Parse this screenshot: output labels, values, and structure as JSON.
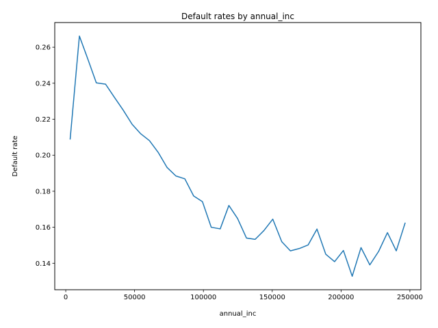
{
  "chart_data": {
    "type": "line",
    "title": "Default rates by annual_inc",
    "xlabel": "annual_inc",
    "ylabel": "Default rate",
    "xlim": [
      -8000,
      258000
    ],
    "ylim": [
      0.1253,
      0.2737
    ],
    "grid": false,
    "xticks": [
      0,
      50000,
      100000,
      150000,
      200000,
      250000
    ],
    "xtick_labels": [
      "0",
      "50000",
      "100000",
      "150000",
      "200000",
      "250000"
    ],
    "yticks": [
      0.14,
      0.16,
      0.18,
      0.2,
      0.22,
      0.24,
      0.26
    ],
    "ytick_labels": [
      "0.14",
      "0.16",
      "0.18",
      "0.20",
      "0.22",
      "0.24",
      "0.26"
    ],
    "series": [
      {
        "color": "#1f77b4",
        "x": [
          3200,
          9900,
          16000,
          22200,
          28900,
          35300,
          41700,
          48200,
          54500,
          60800,
          67300,
          73600,
          80000,
          86500,
          92900,
          99300,
          105700,
          112200,
          118500,
          124800,
          131300,
          137600,
          144000,
          150400,
          156900,
          163200,
          169700,
          176100,
          182500,
          188900,
          195300,
          201700,
          208100,
          214500,
          220900,
          227300,
          233700,
          240100,
          246500
        ],
        "y": [
          0.209,
          0.2662,
          0.2535,
          0.2402,
          0.2395,
          0.2322,
          0.2251,
          0.2172,
          0.2119,
          0.2081,
          0.2014,
          0.1932,
          0.1885,
          0.1869,
          0.1774,
          0.1742,
          0.16,
          0.1591,
          0.1721,
          0.1649,
          0.154,
          0.1533,
          0.1582,
          0.1645,
          0.152,
          0.1469,
          0.1482,
          0.1502,
          0.159,
          0.145,
          0.1409,
          0.1471,
          0.1328,
          0.1487,
          0.1391,
          0.1466,
          0.157,
          0.1469,
          0.1623
        ]
      }
    ]
  }
}
